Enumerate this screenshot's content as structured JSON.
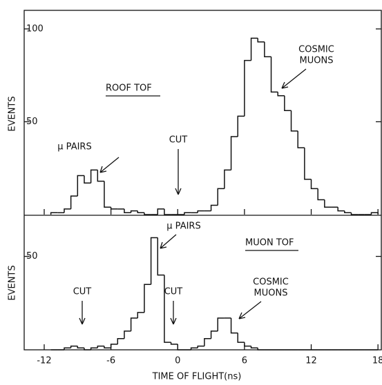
{
  "chart_data": [
    {
      "type": "histogram",
      "ylabel": "EVENTS",
      "bins": [
        -11.4,
        -10.8,
        -10.2,
        -9.6,
        -9.0,
        -8.4,
        -7.8,
        -7.2,
        -6.6,
        -6.0,
        -5.4,
        -4.8,
        -4.2,
        -3.6,
        -3.0,
        -2.4,
        -1.8,
        -1.2,
        -0.6,
        0,
        0.6,
        1.2,
        1.8,
        2.4,
        3.0,
        3.6,
        4.2,
        4.8,
        5.4,
        6.0,
        6.6,
        7.2,
        7.8,
        8.4,
        9.0,
        9.6,
        10.2,
        10.8,
        11.4,
        12.0,
        12.6,
        13.2,
        13.8,
        14.4,
        15.0,
        15.6,
        16.2,
        16.8,
        17.4,
        18.0
      ],
      "values": [
        1,
        1,
        3,
        10,
        21,
        17,
        24,
        18,
        4,
        3,
        3,
        1,
        2,
        1,
        0,
        0,
        3,
        0,
        0,
        0,
        1,
        1,
        2,
        2,
        5,
        14,
        24,
        42,
        53,
        83,
        95,
        93,
        85,
        66,
        64,
        56,
        45,
        36,
        19,
        14,
        8,
        4,
        4,
        2,
        1,
        0,
        0,
        0,
        1
      ],
      "color": "#111111",
      "xlim": [
        -13.8,
        18.3
      ],
      "ylim": [
        0,
        110
      ],
      "yticks": [
        50,
        100
      ],
      "annotations": [
        "ROOF TOF",
        "μ PAIRS",
        "CUT",
        "COSMIC",
        "MUONS"
      ]
    },
    {
      "type": "histogram",
      "ylabel": "EVENTS",
      "xlabel": "TIME OF FLIGHT(ns)",
      "bins": [
        -11.4,
        -10.8,
        -10.2,
        -9.6,
        -9.0,
        -8.4,
        -7.8,
        -7.2,
        -6.6,
        -6.0,
        -5.4,
        -4.8,
        -4.2,
        -3.6,
        -3.0,
        -2.4,
        -1.8,
        -1.2,
        -0.6,
        0,
        0.6,
        1.2,
        1.8,
        2.4,
        3.0,
        3.6,
        4.2,
        4.8,
        5.4,
        6.0,
        6.6,
        7.2,
        7.8,
        8.4,
        9.0,
        9.6,
        10.2,
        10.8,
        11.4,
        12.0,
        12.6,
        13.2,
        13.8,
        14.4,
        15.0,
        15.6,
        16.2,
        16.8,
        17.4,
        18.0
      ],
      "values": [
        0,
        0,
        1,
        2,
        1,
        0,
        1,
        2,
        1,
        3,
        6,
        10,
        17,
        20,
        35,
        60,
        40,
        4,
        3,
        0,
        0,
        1,
        2,
        6,
        10,
        17,
        17,
        9,
        4,
        2,
        1,
        0,
        0,
        0,
        0,
        0,
        0,
        0,
        0,
        0,
        0,
        0,
        0,
        0,
        0,
        0,
        0,
        0,
        0
      ],
      "color": "#111111",
      "xlim": [
        -13.8,
        18.3
      ],
      "ylim": [
        0,
        72
      ],
      "yticks": [
        50
      ],
      "xticks": [
        -12,
        -6,
        0,
        6,
        12,
        18
      ],
      "annotations": [
        "μ PAIRS",
        "MUON TOF",
        "CUT",
        "CUT",
        "COSMIC",
        "MUONS"
      ]
    }
  ]
}
